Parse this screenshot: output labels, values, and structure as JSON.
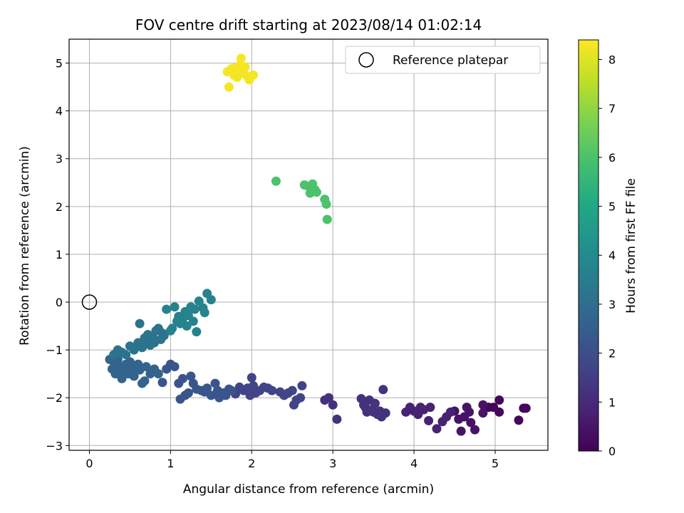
{
  "chart_data": {
    "type": "scatter",
    "title": "FOV centre drift starting at 2023/08/14 01:02:14",
    "xlabel": "Angular distance from reference (arcmin)",
    "ylabel": "Rotation from reference (arcmin)",
    "xlim": [
      -0.25,
      5.65
    ],
    "ylim": [
      -3.1,
      5.5
    ],
    "xticks": [
      0,
      1,
      2,
      3,
      4,
      5
    ],
    "yticks": [
      -3,
      -2,
      -1,
      0,
      1,
      2,
      3,
      4,
      5
    ],
    "grid": true,
    "legend": {
      "placement": "top-right",
      "entries": [
        {
          "label": "Reference platepar",
          "marker": "open-circle"
        }
      ]
    },
    "reference_point": {
      "x": 0,
      "y": 0
    },
    "colorbar": {
      "label": "Hours from first FF file",
      "range": [
        0,
        8.4
      ],
      "ticks": [
        0,
        1,
        2,
        3,
        4,
        5,
        6,
        7,
        8
      ],
      "colormap": "viridis"
    },
    "colormap_stops": [
      "#440154",
      "#482475",
      "#414487",
      "#355f8d",
      "#2a788e",
      "#21918c",
      "#22a884",
      "#44bf70",
      "#7ad151",
      "#bddf26",
      "#fde725"
    ],
    "series": [
      {
        "hours": 0.15,
        "points": [
          [
            5.38,
            -2.22
          ],
          [
            5.35,
            -2.22
          ],
          [
            5.29,
            -2.47
          ],
          [
            5.05,
            -2.05
          ],
          [
            5.05,
            -2.3
          ],
          [
            4.98,
            -2.2
          ],
          [
            4.92,
            -2.2
          ]
        ]
      },
      {
        "hours": 0.45,
        "points": [
          [
            4.85,
            -2.15
          ],
          [
            4.85,
            -2.32
          ],
          [
            4.75,
            -2.67
          ],
          [
            4.7,
            -2.52
          ],
          [
            4.68,
            -2.3
          ],
          [
            4.65,
            -2.2
          ],
          [
            4.62,
            -2.4
          ],
          [
            4.58,
            -2.7
          ],
          [
            4.55,
            -2.45
          ],
          [
            4.5,
            -2.28
          ]
        ]
      },
      {
        "hours": 0.8,
        "points": [
          [
            4.45,
            -2.3
          ],
          [
            4.4,
            -2.4
          ],
          [
            4.35,
            -2.5
          ],
          [
            4.28,
            -2.65
          ],
          [
            4.2,
            -2.2
          ],
          [
            4.18,
            -2.48
          ],
          [
            4.12,
            -2.25
          ],
          [
            4.08,
            -2.2
          ],
          [
            4.05,
            -2.35
          ],
          [
            4.0,
            -2.28
          ],
          [
            3.95,
            -2.2
          ],
          [
            3.9,
            -2.3
          ]
        ]
      },
      {
        "hours": 1.2,
        "points": [
          [
            3.65,
            -2.32
          ],
          [
            3.62,
            -1.83
          ],
          [
            3.6,
            -2.4
          ],
          [
            3.58,
            -2.28
          ],
          [
            3.55,
            -2.35
          ],
          [
            3.52,
            -2.12
          ],
          [
            3.5,
            -2.3
          ],
          [
            3.48,
            -2.25
          ],
          [
            3.45,
            -2.05
          ],
          [
            3.42,
            -2.3
          ],
          [
            3.4,
            -2.2
          ],
          [
            3.38,
            -2.15
          ],
          [
            3.35,
            -2.02
          ],
          [
            3.05,
            -2.45
          ],
          [
            3.0,
            -2.15
          ],
          [
            2.95,
            -2.0
          ],
          [
            2.9,
            -2.05
          ]
        ]
      },
      {
        "hours": 1.7,
        "points": [
          [
            2.62,
            -1.75
          ],
          [
            2.6,
            -2.0
          ],
          [
            2.55,
            -2.05
          ],
          [
            2.52,
            -2.15
          ],
          [
            2.5,
            -1.85
          ],
          [
            2.45,
            -1.9
          ],
          [
            2.4,
            -1.95
          ],
          [
            2.35,
            -1.88
          ],
          [
            2.25,
            -1.85
          ],
          [
            2.2,
            -1.8
          ],
          [
            2.15,
            -1.78
          ],
          [
            2.1,
            -1.85
          ],
          [
            2.05,
            -1.9
          ],
          [
            2.02,
            -1.75
          ],
          [
            2.0,
            -1.58
          ],
          [
            1.98,
            -1.95
          ],
          [
            1.95,
            -1.8
          ],
          [
            1.9,
            -1.85
          ],
          [
            1.85,
            -1.78
          ],
          [
            1.8,
            -1.92
          ]
        ]
      },
      {
        "hours": 2.2,
        "points": [
          [
            1.75,
            -1.85
          ],
          [
            1.72,
            -1.82
          ],
          [
            1.68,
            -1.95
          ],
          [
            1.65,
            -1.9
          ],
          [
            1.6,
            -2.0
          ],
          [
            1.58,
            -1.85
          ],
          [
            1.55,
            -1.7
          ],
          [
            1.5,
            -1.95
          ],
          [
            1.45,
            -1.8
          ],
          [
            1.42,
            -1.88
          ],
          [
            1.38,
            -1.85
          ],
          [
            1.32,
            -1.82
          ],
          [
            1.28,
            -1.7
          ],
          [
            1.25,
            -1.55
          ],
          [
            1.22,
            -1.9
          ],
          [
            1.18,
            -1.95
          ],
          [
            1.15,
            -1.6
          ],
          [
            1.12,
            -2.03
          ],
          [
            1.1,
            -1.7
          ],
          [
            1.05,
            -1.35
          ],
          [
            1.0,
            -1.3
          ],
          [
            0.95,
            -1.4
          ],
          [
            0.9,
            -1.68
          ]
        ]
      },
      {
        "hours": 2.7,
        "points": [
          [
            0.85,
            -1.5
          ],
          [
            0.8,
            -1.4
          ],
          [
            0.75,
            -1.5
          ],
          [
            0.7,
            -1.35
          ],
          [
            0.68,
            -1.65
          ],
          [
            0.65,
            -1.7
          ],
          [
            0.62,
            -1.42
          ],
          [
            0.6,
            -1.3
          ],
          [
            0.55,
            -1.55
          ],
          [
            0.52,
            -1.4
          ],
          [
            0.5,
            -1.25
          ],
          [
            0.48,
            -1.5
          ],
          [
            0.45,
            -1.3
          ],
          [
            0.42,
            -1.45
          ],
          [
            0.4,
            -1.6
          ],
          [
            0.38,
            -1.35
          ],
          [
            0.35,
            -1.2
          ],
          [
            0.32,
            -1.5
          ],
          [
            0.3,
            -1.25
          ],
          [
            0.28,
            -1.4
          ],
          [
            0.25,
            -1.2
          ]
        ]
      },
      {
        "hours": 3.2,
        "points": [
          [
            0.3,
            -1.1
          ],
          [
            0.35,
            -1.0
          ],
          [
            0.4,
            -1.05
          ],
          [
            0.45,
            -1.1
          ],
          [
            0.5,
            -0.92
          ],
          [
            0.55,
            -1.0
          ],
          [
            0.6,
            -0.85
          ],
          [
            0.62,
            -0.45
          ],
          [
            0.65,
            -0.95
          ],
          [
            0.68,
            -0.75
          ],
          [
            0.7,
            -0.8
          ],
          [
            0.72,
            -0.68
          ],
          [
            0.75,
            -0.9
          ],
          [
            0.78,
            -0.72
          ],
          [
            0.8,
            -0.85
          ],
          [
            0.82,
            -0.6
          ],
          [
            0.85,
            -0.55
          ],
          [
            0.88,
            -0.78
          ],
          [
            0.9,
            -0.65
          ],
          [
            0.92,
            -0.7
          ]
        ]
      },
      {
        "hours": 3.7,
        "points": [
          [
            0.95,
            -0.15
          ],
          [
            1.0,
            -0.6
          ],
          [
            1.02,
            -0.55
          ],
          [
            1.05,
            -0.1
          ],
          [
            1.08,
            -0.4
          ],
          [
            1.1,
            -0.3
          ],
          [
            1.12,
            -0.45
          ],
          [
            1.15,
            -0.35
          ],
          [
            1.18,
            -0.2
          ],
          [
            1.2,
            -0.5
          ],
          [
            1.22,
            -0.28
          ],
          [
            1.25,
            -0.1
          ],
          [
            1.28,
            -0.4
          ],
          [
            1.3,
            -0.15
          ],
          [
            1.32,
            -0.62
          ],
          [
            1.35,
            0.02
          ],
          [
            1.4,
            -0.12
          ],
          [
            1.42,
            -0.22
          ],
          [
            1.45,
            0.18
          ],
          [
            1.5,
            0.05
          ]
        ]
      },
      {
        "hours": 6.0,
        "points": [
          [
            2.3,
            2.53
          ],
          [
            2.65,
            2.45
          ],
          [
            2.7,
            2.42
          ],
          [
            2.72,
            2.28
          ],
          [
            2.75,
            2.47
          ],
          [
            2.78,
            2.35
          ],
          [
            2.8,
            2.3
          ],
          [
            2.9,
            2.15
          ],
          [
            2.92,
            2.05
          ],
          [
            2.93,
            1.73
          ]
        ]
      },
      {
        "hours": 8.3,
        "points": [
          [
            1.72,
            4.5
          ],
          [
            1.7,
            4.82
          ],
          [
            1.75,
            4.88
          ],
          [
            1.78,
            4.75
          ],
          [
            1.8,
            4.9
          ],
          [
            1.82,
            4.7
          ],
          [
            1.85,
            4.95
          ],
          [
            1.87,
            5.1
          ],
          [
            1.88,
            4.85
          ],
          [
            1.9,
            4.78
          ],
          [
            1.92,
            4.92
          ],
          [
            1.95,
            4.72
          ],
          [
            1.97,
            4.65
          ],
          [
            2.02,
            4.75
          ]
        ]
      }
    ]
  }
}
